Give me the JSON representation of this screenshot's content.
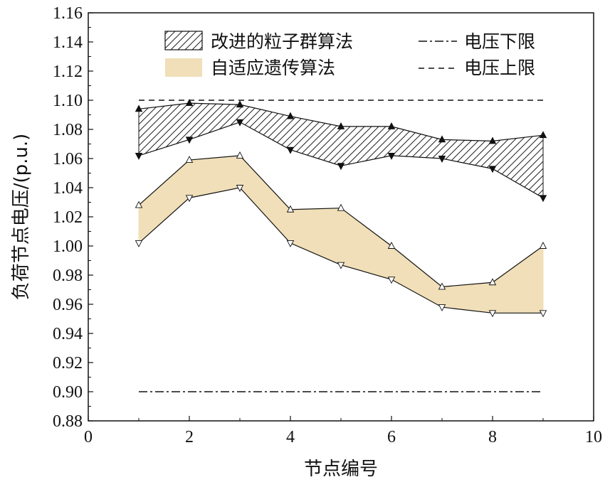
{
  "chart_data": {
    "type": "area",
    "xlabel": "节点编号",
    "ylabel": "负荷节点电压/(p.u.)",
    "xlim": [
      0,
      10
    ],
    "ylim": [
      0.88,
      1.16
    ],
    "x_ticks": [
      "0",
      "2",
      "4",
      "6",
      "8",
      "10"
    ],
    "y_ticks": [
      "0.88",
      "0.90",
      "0.92",
      "0.94",
      "0.96",
      "0.98",
      "1.00",
      "1.02",
      "1.04",
      "1.06",
      "1.08",
      "1.10",
      "1.12",
      "1.14",
      "1.16"
    ],
    "grid": false,
    "legend_position": "top",
    "x": [
      1,
      2,
      3,
      4,
      5,
      6,
      7,
      8,
      9
    ],
    "bands": [
      {
        "name": "改进的粒子群算法",
        "style": "hatched",
        "upper": [
          1.094,
          1.098,
          1.097,
          1.089,
          1.082,
          1.082,
          1.073,
          1.072,
          1.076
        ],
        "lower": [
          1.062,
          1.073,
          1.085,
          1.066,
          1.055,
          1.062,
          1.06,
          1.053,
          1.033
        ],
        "marker_color": "#111111"
      },
      {
        "name": "自适应遗传算法",
        "style": "filled",
        "color": "#f0dfb8",
        "upper": [
          1.028,
          1.059,
          1.062,
          1.025,
          1.026,
          1.0,
          0.972,
          0.975,
          1.0
        ],
        "lower": [
          1.002,
          1.033,
          1.04,
          1.002,
          0.987,
          0.977,
          0.958,
          0.954,
          0.954
        ],
        "marker_color": "#ffffff"
      }
    ],
    "reference_lines": [
      {
        "name": "电压下限",
        "y": 0.9,
        "x_range": [
          1,
          9
        ],
        "style": "dashdot"
      },
      {
        "name": "电压上限",
        "y": 1.1,
        "x_range": [
          1,
          9
        ],
        "style": "dashed"
      }
    ]
  }
}
